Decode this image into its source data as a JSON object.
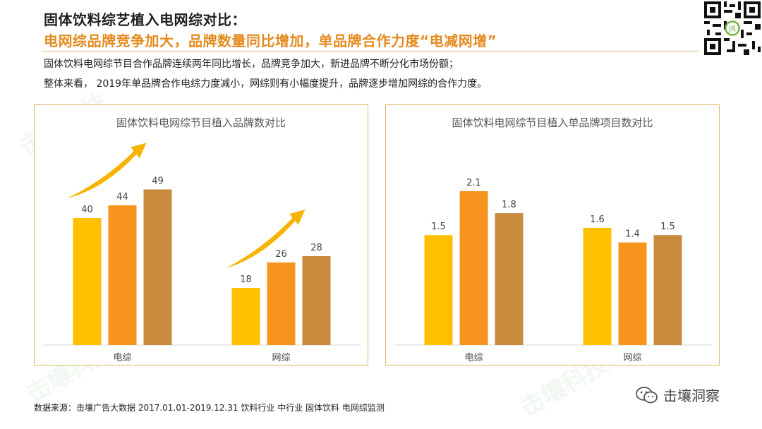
{
  "header": {
    "title": "固体饮料综艺植入电网综对比：",
    "subtitle": "电网综品牌竞争加大，品牌数量同比增加，单品牌合作力度“电减网增”"
  },
  "description": [
    "固体饮料电网综节目合作品牌连续两年同比增长，品牌竞争加大，新进品牌不断分化市场份额；",
    "整体来看， 2019年单品牌合作电综力度减小，网综则有小幅度提升，品牌逐步增加网综的合作力度。"
  ],
  "colors": {
    "series1": "#FFC000",
    "series2": "#F7941D",
    "series3": "#C98B3E",
    "arrow": "#F6B400",
    "title_accent": "#E58A1F"
  },
  "chart_data": [
    {
      "type": "bar",
      "title": "固体饮料电网综节目植入品牌数对比",
      "categories": [
        "电综",
        "网综"
      ],
      "series": [
        {
          "values": [
            40,
            18
          ]
        },
        {
          "values": [
            44,
            26
          ]
        },
        {
          "values": [
            49,
            28
          ]
        }
      ],
      "ylim": [
        0,
        60
      ],
      "data_labels": true,
      "grid": false,
      "arrows": "increase"
    },
    {
      "type": "bar",
      "title": "固体饮料电网综节目植入单品牌项目数对比",
      "categories": [
        "电综",
        "网综"
      ],
      "series": [
        {
          "values": [
            1.5,
            1.6
          ]
        },
        {
          "values": [
            2.1,
            1.4
          ]
        },
        {
          "values": [
            1.8,
            1.5
          ]
        }
      ],
      "ylim": [
        0,
        2.6
      ],
      "data_labels": true,
      "grid": false
    }
  ],
  "footer": {
    "source": "数据来源：击壤广告大数据 2017.01.01-2019.12.31 饮料行业 中行业 固体饮料  电网综监测",
    "brand": "击壤洞察"
  },
  "watermark": "击壤科技"
}
